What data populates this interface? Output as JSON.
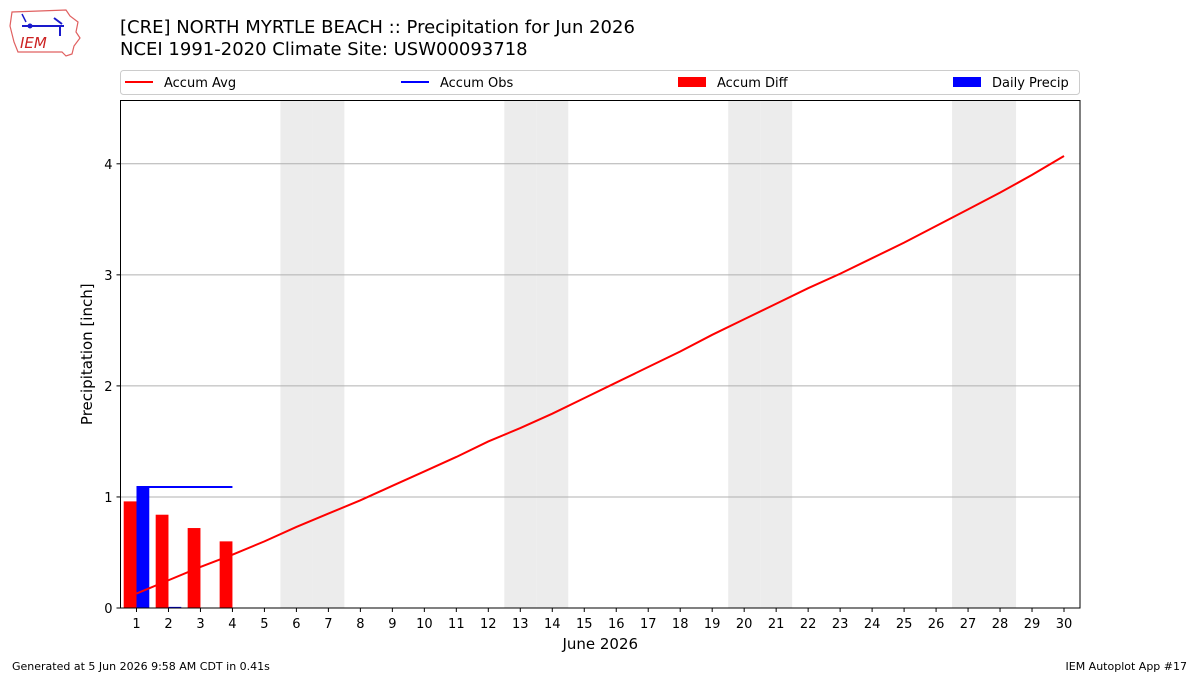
{
  "header": {
    "title_line1": "[CRE] NORTH MYRTLE BEACH :: Precipitation for Jun 2026",
    "title_line2": "NCEI 1991-2020 Climate Site: USW00093718"
  },
  "logo": {
    "text": "IEM"
  },
  "footer": {
    "generated": "Generated at 5 Jun 2026 9:58 AM CDT in 0.41s",
    "app": "IEM Autoplot App #17"
  },
  "colors": {
    "accum_avg": "#ff0000",
    "accum_obs": "#0000ff",
    "accum_diff": "#ff0000",
    "daily_precip": "#0000ff",
    "weekend_band": "#ececec",
    "grid": "#b0b0b0"
  },
  "chart_data": {
    "type": "bar",
    "xlabel": "June 2026",
    "ylabel": "Precipitation [inch]",
    "xlim": [
      0.5,
      30.5
    ],
    "ylim": [
      0,
      4.57
    ],
    "yticks": [
      0,
      1,
      2,
      3,
      4
    ],
    "days": [
      1,
      2,
      3,
      4,
      5,
      6,
      7,
      8,
      9,
      10,
      11,
      12,
      13,
      14,
      15,
      16,
      17,
      18,
      19,
      20,
      21,
      22,
      23,
      24,
      25,
      26,
      27,
      28,
      29,
      30
    ],
    "weekend_days": [
      6,
      7,
      13,
      14,
      20,
      21,
      27,
      28
    ],
    "grid": "y",
    "legend": {
      "placement": "top",
      "entries": [
        {
          "label": "Accum Avg",
          "kind": "line",
          "series": "accum_avg"
        },
        {
          "label": "Accum Obs",
          "kind": "line",
          "series": "accum_obs"
        },
        {
          "label": "Accum Diff",
          "kind": "bar",
          "series": "accum_diff"
        },
        {
          "label": "Daily Precip",
          "kind": "bar",
          "series": "daily_precip"
        }
      ]
    },
    "series": [
      {
        "name": "Accum Avg",
        "type": "line",
        "x": [
          1,
          2,
          3,
          4,
          5,
          6,
          7,
          8,
          9,
          10,
          11,
          12,
          13,
          14,
          15,
          16,
          17,
          18,
          19,
          20,
          21,
          22,
          23,
          24,
          25,
          26,
          27,
          28,
          29,
          30
        ],
        "values": [
          0.13,
          0.25,
          0.37,
          0.48,
          0.6,
          0.73,
          0.85,
          0.97,
          1.1,
          1.23,
          1.36,
          1.5,
          1.62,
          1.75,
          1.89,
          2.03,
          2.17,
          2.31,
          2.46,
          2.6,
          2.74,
          2.88,
          3.01,
          3.15,
          3.29,
          3.44,
          3.59,
          3.74,
          3.9,
          4.07
        ]
      },
      {
        "name": "Accum Obs",
        "type": "line",
        "x": [
          1,
          2,
          3,
          4
        ],
        "values": [
          1.09,
          1.09,
          1.09,
          1.09
        ]
      },
      {
        "name": "Accum Diff",
        "type": "bar",
        "x": [
          1,
          2,
          3,
          4
        ],
        "values": [
          0.96,
          0.84,
          0.72,
          0.6
        ]
      },
      {
        "name": "Daily Precip",
        "type": "bar",
        "x": [
          1,
          2,
          3,
          4
        ],
        "values": [
          1.09,
          0.01,
          0.0,
          0.0
        ]
      }
    ]
  }
}
